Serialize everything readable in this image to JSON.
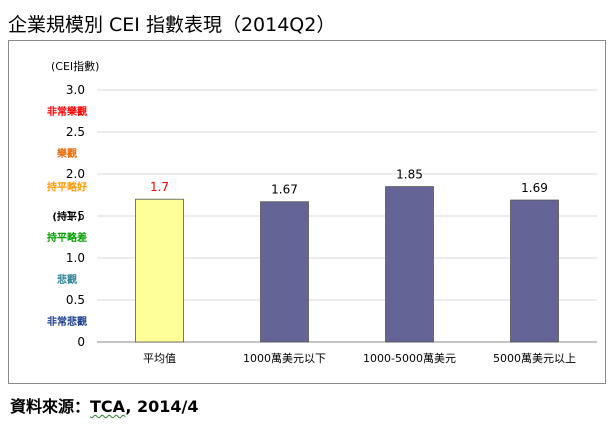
{
  "title": "企業規模別 CEI 指數表現（2014Q2）",
  "source": {
    "label": "資料來源：",
    "org": "TCA",
    "date": ", 2014/4"
  },
  "chart_data": {
    "type": "bar",
    "title": "企業規模別 CEI 指數表現（2014Q2）",
    "ylabel": "(CEI指數)",
    "ylim": [
      0,
      3.0
    ],
    "yticks": [
      0,
      0.5,
      1.0,
      1.5,
      2.0,
      2.5,
      3.0
    ],
    "ytick_labels": [
      "0",
      "0.5",
      "1.0",
      "1.5",
      "2.0",
      "2.5",
      "3.0"
    ],
    "categories": [
      "平均值",
      "1000萬美元以下",
      "1000-5000萬美元",
      "5000萬美元以上"
    ],
    "values": [
      1.7,
      1.67,
      1.85,
      1.69
    ],
    "data_labels": [
      "1.7",
      "1.67",
      "1.85",
      "1.69"
    ],
    "bar_colors": [
      "#ffff99",
      "#646496",
      "#646496",
      "#646496"
    ],
    "label_colors": [
      "#ff0000",
      "#000000",
      "#000000",
      "#000000"
    ],
    "grid": true,
    "zones": [
      {
        "label": "非常樂觀",
        "value": 2.75,
        "color": "#ff0000"
      },
      {
        "label": "樂觀",
        "value": 2.25,
        "color": "#e36c09"
      },
      {
        "label": "持平略好",
        "value": 1.85,
        "color": "#ff9900"
      },
      {
        "label": "(持平)",
        "value": 1.5,
        "color": "#000000"
      },
      {
        "label": "持平略差",
        "value": 1.25,
        "color": "#00a000"
      },
      {
        "label": "悲觀",
        "value": 0.75,
        "color": "#31859b"
      },
      {
        "label": "非常悲觀",
        "value": 0.25,
        "color": "#1f3f8f"
      }
    ]
  }
}
